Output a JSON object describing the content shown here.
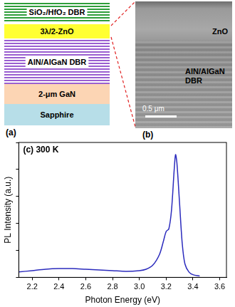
{
  "panel_a": {
    "label": "(a)",
    "layers": [
      "SiO₂/HfO₂ DBR",
      "3λ/2-ZnO",
      "AlN/AlGaN DBR",
      "2-μm GaN",
      "Sapphire"
    ]
  },
  "panel_b": {
    "label": "(b)",
    "annotations": [
      "ZnO",
      "AlN/AlGaN DBR"
    ],
    "scale_bar": "0.5 μm"
  },
  "chart_data": {
    "type": "line",
    "annotation": "(c) 300 K",
    "x_label": "Photon Energy (eV)",
    "y_label": "PL Intensity (a.u.)",
    "x": [
      2.1,
      2.2,
      2.3,
      2.4,
      2.5,
      2.6,
      2.7,
      2.8,
      2.9,
      3.0,
      3.05,
      3.1,
      3.15,
      3.18,
      3.2,
      3.22,
      3.24,
      3.26,
      3.27,
      3.28,
      3.3,
      3.32,
      3.34,
      3.37,
      3.4,
      3.45
    ],
    "values": [
      0.04,
      0.05,
      0.06,
      0.065,
      0.065,
      0.06,
      0.055,
      0.05,
      0.045,
      0.05,
      0.06,
      0.09,
      0.17,
      0.27,
      0.34,
      0.36,
      0.5,
      0.8,
      0.91,
      0.85,
      0.55,
      0.25,
      0.1,
      0.04,
      0.02,
      0.01
    ],
    "color": "#2b2bbd",
    "xlim": [
      2.1,
      3.65
    ],
    "xticks": [
      2.2,
      2.4,
      2.6,
      2.8,
      {
        "value": 3,
        "label": "3.0"
      },
      3.2,
      3.4,
      3.6
    ],
    "ylim": [
      0,
      1
    ],
    "yticks": [
      0,
      0.2,
      0.4,
      0.6,
      0.8,
      1
    ],
    "tick_labels": "x",
    "grid": false
  }
}
